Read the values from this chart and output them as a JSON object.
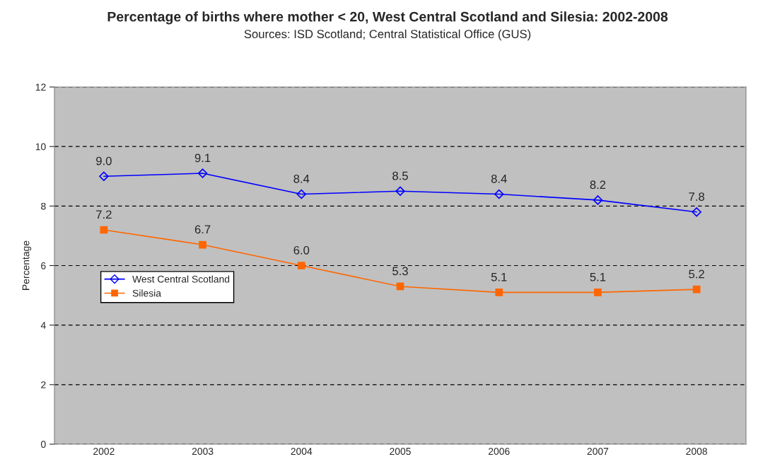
{
  "chart_data": {
    "type": "line",
    "title": "Percentage of births where mother < 20, West Central Scotland and Silesia: 2002-2008",
    "subtitle": "Sources: ISD Scotland; Central Statistical Office (GUS)",
    "ylabel": "Percentage",
    "categories": [
      "2002",
      "2003",
      "2004",
      "2005",
      "2006",
      "2007",
      "2008"
    ],
    "series": [
      {
        "name": "West Central Scotland",
        "color": "#0000ff",
        "marker": "diamond",
        "values": [
          9.0,
          9.1,
          8.4,
          8.5,
          8.4,
          8.2,
          7.8
        ],
        "value_labels": [
          "9.0",
          "9.1",
          "8.4",
          "8.5",
          "8.4",
          "8.2",
          "7.8"
        ]
      },
      {
        "name": "Silesia",
        "color": "#ff6600",
        "marker": "square",
        "values": [
          7.2,
          6.7,
          6.0,
          5.3,
          5.1,
          5.1,
          5.2
        ],
        "value_labels": [
          "7.2",
          "6.7",
          "6.0",
          "5.3",
          "5.1",
          "5.1",
          "5.2"
        ]
      }
    ],
    "ylim": [
      0,
      12
    ],
    "yticks": [
      0,
      2,
      4,
      6,
      8,
      10,
      12
    ],
    "grid": "y",
    "legend": "left"
  }
}
